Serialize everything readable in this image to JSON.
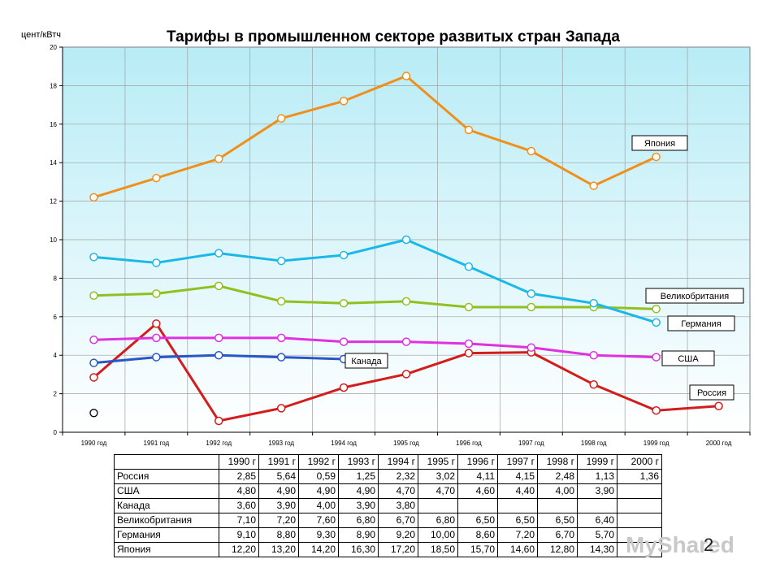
{
  "chart_data": {
    "type": "line",
    "title": "Тарифы в промышленном секторе развитых стран Запада",
    "ylabel": "цент/кВтч",
    "xlabel": "",
    "ylim": [
      0,
      20
    ],
    "yticks": [
      "0",
      "2",
      "4",
      "6",
      "8",
      "10",
      "12",
      "14",
      "16",
      "18",
      "20"
    ],
    "categories": [
      "1990 год",
      "1991 год",
      "1992 год",
      "1993 год",
      "1994 год",
      "1995 год",
      "1996 год",
      "1997 год",
      "1998 год",
      "1999 год",
      "2000 год"
    ],
    "grid": true,
    "series": [
      {
        "name": "Россия",
        "color": "#d41c1c",
        "values": [
          2.85,
          5.64,
          0.59,
          1.25,
          2.32,
          3.02,
          4.11,
          4.15,
          2.48,
          1.13,
          1.36
        ]
      },
      {
        "name": "США",
        "color": "#e030e0",
        "values": [
          4.8,
          4.9,
          4.9,
          4.9,
          4.7,
          4.7,
          4.6,
          4.4,
          4.0,
          3.9,
          null
        ]
      },
      {
        "name": "Канада",
        "color": "#2855c8",
        "values": [
          3.6,
          3.9,
          4.0,
          3.9,
          3.8,
          null,
          null,
          null,
          null,
          null,
          null
        ]
      },
      {
        "name": "Великобритания",
        "color": "#90c020",
        "values": [
          7.1,
          7.2,
          7.6,
          6.8,
          6.7,
          6.8,
          6.5,
          6.5,
          6.5,
          6.4,
          null
        ]
      },
      {
        "name": "Германия",
        "color": "#1ab8e8",
        "values": [
          9.1,
          8.8,
          9.3,
          8.9,
          9.2,
          10.0,
          8.6,
          7.2,
          6.7,
          5.7,
          null
        ]
      },
      {
        "name": "Япония",
        "color": "#f0901c",
        "values": [
          12.2,
          13.2,
          14.2,
          16.3,
          17.2,
          18.5,
          15.7,
          14.6,
          12.8,
          14.3,
          null
        ]
      }
    ],
    "stray_point_values": [
      1.0
    ]
  },
  "table": {
    "header": [
      "1990 г",
      "1991 г",
      "1992 г",
      "1993 г",
      "1994 г",
      "1995 г",
      "1996 г",
      "1997 г",
      "1998 г",
      "1999 г",
      "2000 г"
    ],
    "rows": [
      {
        "name": "Россия",
        "values": [
          "2,85",
          "5,64",
          "0,59",
          "1,25",
          "2,32",
          "3,02",
          "4,11",
          "4,15",
          "2,48",
          "1,13",
          "1,36"
        ]
      },
      {
        "name": "США",
        "values": [
          "4,80",
          "4,90",
          "4,90",
          "4,90",
          "4,70",
          "4,70",
          "4,60",
          "4,40",
          "4,00",
          "3,90",
          ""
        ]
      },
      {
        "name": "Канада",
        "values": [
          "3,60",
          "3,90",
          "4,00",
          "3,90",
          "3,80",
          "",
          "",
          "",
          "",
          "",
          ""
        ]
      },
      {
        "name": "Великобритания",
        "values": [
          "7,10",
          "7,20",
          "7,60",
          "6,80",
          "6,70",
          "6,80",
          "6,50",
          "6,50",
          "6,50",
          "6,40",
          ""
        ]
      },
      {
        "name": "Германия",
        "values": [
          "9,10",
          "8,80",
          "9,30",
          "8,90",
          "9,20",
          "10,00",
          "8,60",
          "7,20",
          "6,70",
          "5,70",
          ""
        ]
      },
      {
        "name": "Япония",
        "values": [
          "12,20",
          "13,20",
          "14,20",
          "16,30",
          "17,20",
          "18,50",
          "15,70",
          "14,60",
          "12,80",
          "14,30",
          ""
        ]
      }
    ]
  },
  "page_number": "2",
  "watermark": "MyShared"
}
